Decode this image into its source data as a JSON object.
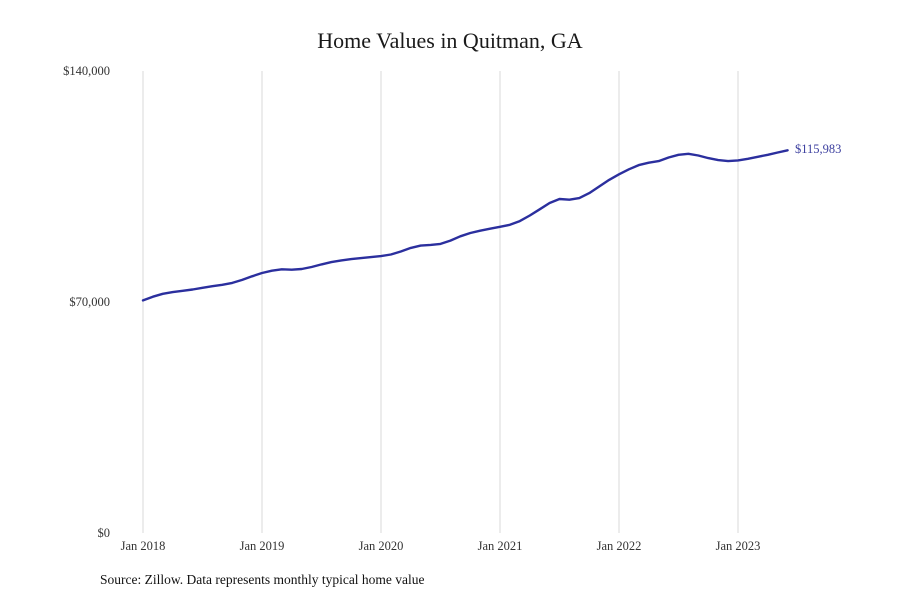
{
  "chart_data": {
    "type": "line",
    "title": "Home Values in Quitman, GA",
    "series_name": "Monthly typical home value",
    "x_start": "Jan 2018",
    "x_tick_labels": [
      "Jan 2018",
      "Jan 2019",
      "Jan 2020",
      "Jan 2021",
      "Jan 2022",
      "Jan 2023"
    ],
    "x_tick_month_indices": [
      0,
      12,
      24,
      36,
      48,
      60
    ],
    "y_ticks": [
      {
        "value": 140000,
        "label": "$140,000"
      },
      {
        "value": 70000,
        "label": "$70,000"
      },
      {
        "value": 0,
        "label": "$0"
      }
    ],
    "ylim": [
      0,
      140000
    ],
    "grid": "vertical-only",
    "legend": "none",
    "line_color": "#2b2f9e",
    "grid_color": "#d9d9d9",
    "end_label": "$115,983",
    "end_value": 115983,
    "values": [
      70500,
      71600,
      72500,
      73000,
      73400,
      73800,
      74300,
      74800,
      75200,
      75800,
      76700,
      77800,
      78800,
      79500,
      79900,
      79800,
      80000,
      80600,
      81400,
      82100,
      82600,
      83000,
      83300,
      83600,
      83900,
      84400,
      85300,
      86400,
      87100,
      87300,
      87600,
      88600,
      89900,
      90900,
      91600,
      92200,
      92800,
      93400,
      94500,
      96200,
      98100,
      100000,
      101200,
      101000,
      101500,
      103000,
      105000,
      107000,
      108700,
      110200,
      111500,
      112200,
      112700,
      113800,
      114600,
      114900,
      114400,
      113600,
      113000,
      112700,
      112900,
      113400,
      114000,
      114600,
      115300,
      115983
    ]
  },
  "footer": {
    "source_note": "Source: Zillow. Data represents monthly typical home value"
  }
}
